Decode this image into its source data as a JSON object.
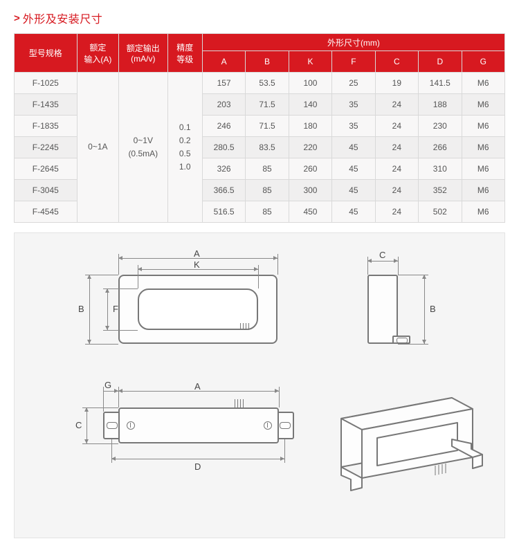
{
  "section_title": "外形及安装尺寸",
  "table": {
    "header": {
      "model": "型号规格",
      "input": "额定\n输入(A)",
      "output": "额定输出\n(mA/v)",
      "acc": "精度\n等级",
      "dims": "外形尺寸(mm)",
      "cols": [
        "A",
        "B",
        "K",
        "F",
        "C",
        "D",
        "G"
      ]
    },
    "merged": {
      "input": "0~1A",
      "output": "0~1V\n(0.5mA)",
      "acc": "0.1\n0.2\n0.5\n1.0"
    },
    "rows": [
      {
        "model": "F-1025",
        "d": [
          "157",
          "53.5",
          "100",
          "25",
          "19",
          "141.5",
          "M6"
        ]
      },
      {
        "model": "F-1435",
        "d": [
          "203",
          "71.5",
          "140",
          "35",
          "24",
          "188",
          "M6"
        ]
      },
      {
        "model": "F-1835",
        "d": [
          "246",
          "71.5",
          "180",
          "35",
          "24",
          "230",
          "M6"
        ]
      },
      {
        "model": "F-2245",
        "d": [
          "280.5",
          "83.5",
          "220",
          "45",
          "24",
          "266",
          "M6"
        ]
      },
      {
        "model": "F-2645",
        "d": [
          "326",
          "85",
          "260",
          "45",
          "24",
          "310",
          "M6"
        ]
      },
      {
        "model": "F-3045",
        "d": [
          "366.5",
          "85",
          "300",
          "45",
          "24",
          "352",
          "M6"
        ]
      },
      {
        "model": "F-4545",
        "d": [
          "516.5",
          "85",
          "450",
          "45",
          "24",
          "502",
          "M6"
        ]
      }
    ]
  },
  "diagram_labels": {
    "A": "A",
    "B": "B",
    "C": "C",
    "D": "D",
    "F": "F",
    "G": "G",
    "K": "K"
  }
}
